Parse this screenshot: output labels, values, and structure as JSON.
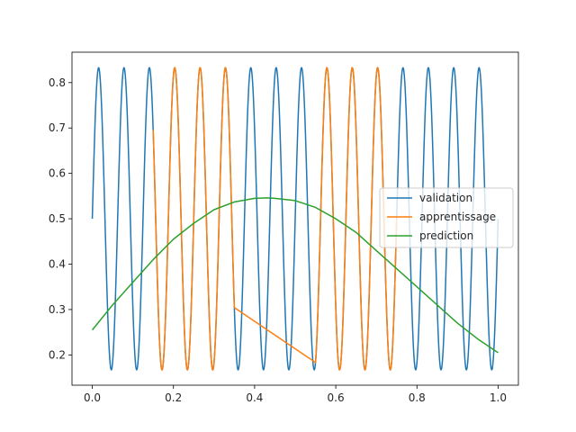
{
  "chart_data": {
    "type": "line",
    "title": "",
    "xlabel": "",
    "ylabel": "",
    "xlim": [
      -0.05,
      1.05
    ],
    "ylim": [
      0.1333,
      0.867
    ],
    "x_ticks": [
      0.0,
      0.2,
      0.4,
      0.6,
      0.8,
      1.0
    ],
    "x_tick_labels": [
      "0.0",
      "0.2",
      "0.4",
      "0.6",
      "0.8",
      "1.0"
    ],
    "y_ticks": [
      0.2,
      0.3,
      0.4,
      0.5,
      0.6,
      0.7,
      0.8
    ],
    "y_tick_labels": [
      "0.2",
      "0.3",
      "0.4",
      "0.5",
      "0.6",
      "0.7",
      "0.8"
    ],
    "grid": false,
    "legend_position": "center-right",
    "series": [
      {
        "name": "validation",
        "color": "#1f77b4",
        "description_of_shape": "y = 0.5 + 0.333*sin(2*pi*16*x)",
        "x": [
          0.0,
          0.01563,
          0.03125,
          0.04688,
          0.0625,
          0.07813,
          0.09375,
          0.10938,
          0.125,
          0.14063,
          0.15625,
          0.17188,
          0.1875,
          0.20313,
          0.21875,
          0.23438,
          0.25,
          0.26563,
          0.28125,
          0.29688,
          0.3125,
          0.32813,
          0.34375,
          0.35938,
          0.375,
          0.39063,
          0.40625,
          0.42188,
          0.4375,
          0.45313,
          0.46875,
          0.48438,
          0.5,
          0.51563,
          0.53125,
          0.54688,
          0.5625,
          0.57813,
          0.59375,
          0.60938,
          0.625,
          0.64063,
          0.65625,
          0.67188,
          0.6875,
          0.70313,
          0.71875,
          0.73438,
          0.75,
          0.76563,
          0.78125,
          0.79688,
          0.8125,
          0.82813,
          0.84375,
          0.85938,
          0.875,
          0.89063,
          0.90625,
          0.92188,
          0.9375,
          0.95313,
          0.96875,
          0.98438,
          1.0
        ],
        "y": [
          0.5,
          0.833,
          0.5,
          0.167,
          0.5,
          0.833,
          0.5,
          0.167,
          0.5,
          0.833,
          0.5,
          0.167,
          0.5,
          0.833,
          0.5,
          0.167,
          0.5,
          0.833,
          0.5,
          0.167,
          0.5,
          0.833,
          0.5,
          0.167,
          0.5,
          0.833,
          0.5,
          0.167,
          0.5,
          0.833,
          0.5,
          0.167,
          0.5,
          0.833,
          0.5,
          0.167,
          0.5,
          0.833,
          0.5,
          0.167,
          0.5,
          0.833,
          0.5,
          0.167,
          0.5,
          0.833,
          0.5,
          0.167,
          0.5,
          0.833,
          0.5,
          0.167,
          0.5,
          0.833,
          0.5,
          0.167,
          0.5,
          0.833,
          0.5,
          0.167,
          0.5,
          0.833,
          0.5,
          0.167,
          0.333
        ]
      },
      {
        "name": "apprentissage",
        "color": "#ff7f0e",
        "x": [
          0.15,
          0.1719,
          0.1875,
          0.2031,
          0.2188,
          0.2344,
          0.25,
          0.2656,
          0.2813,
          0.2969,
          0.3125,
          0.3281,
          0.34375,
          0.35,
          0.55,
          0.5625,
          0.5781,
          0.5938,
          0.6094,
          0.625,
          0.6406,
          0.6563,
          0.6719,
          0.6875,
          0.7031,
          0.7188,
          0.7344,
          0.75
        ],
        "y": [
          0.72,
          0.167,
          0.5,
          0.833,
          0.5,
          0.167,
          0.5,
          0.833,
          0.5,
          0.167,
          0.5,
          0.833,
          0.5,
          0.36,
          0.167,
          0.5,
          0.833,
          0.5,
          0.167,
          0.5,
          0.833,
          0.5,
          0.167,
          0.5,
          0.833,
          0.5,
          0.167,
          0.37
        ]
      },
      {
        "name": "prediction",
        "color": "#2ca02c",
        "x": [
          0.0,
          0.05,
          0.1,
          0.15,
          0.2,
          0.25,
          0.3,
          0.35,
          0.4,
          0.43,
          0.45,
          0.5,
          0.55,
          0.6,
          0.65,
          0.7,
          0.75,
          0.8,
          0.85,
          0.9,
          0.95,
          1.0
        ],
        "y": [
          0.255,
          0.31,
          0.36,
          0.41,
          0.455,
          0.49,
          0.52,
          0.537,
          0.545,
          0.546,
          0.545,
          0.54,
          0.525,
          0.5,
          0.47,
          0.43,
          0.39,
          0.35,
          0.31,
          0.27,
          0.235,
          0.205
        ]
      }
    ]
  }
}
